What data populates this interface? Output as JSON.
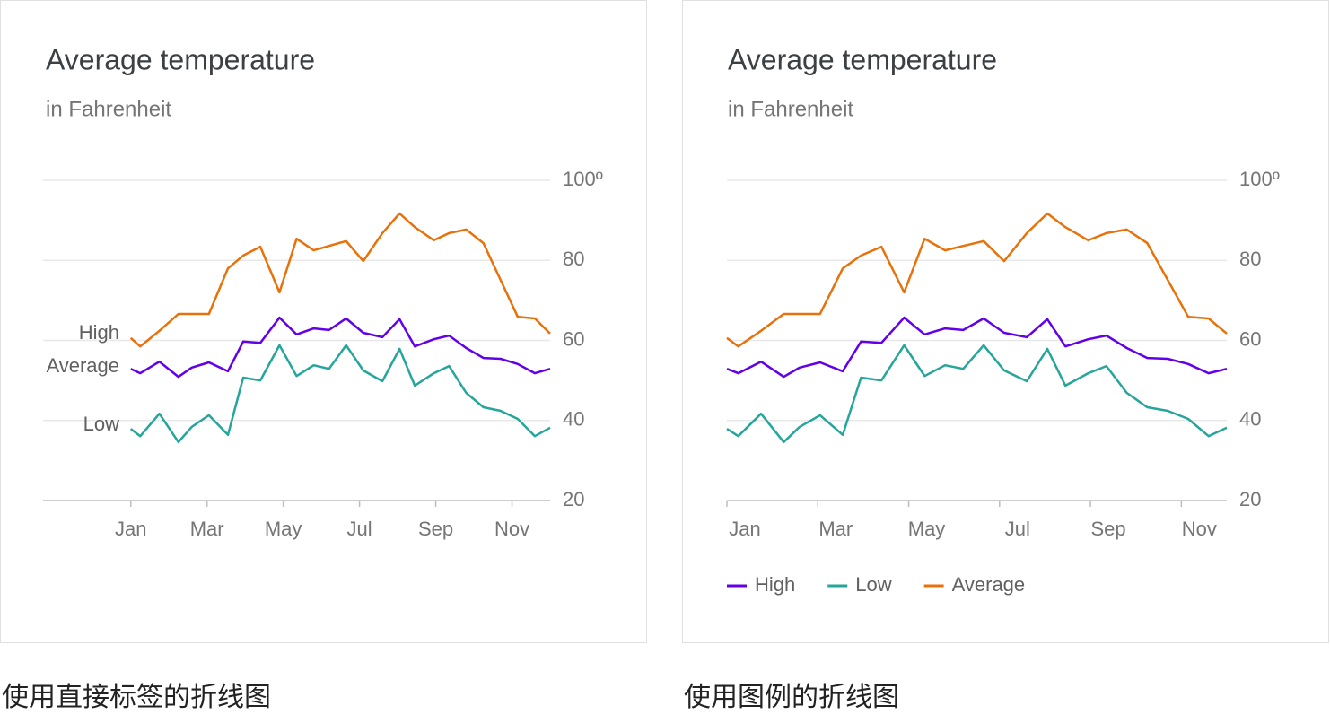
{
  "chart_data": [
    {
      "type": "line",
      "title": "Average temperature",
      "subtitle": "in Fahrenheit",
      "caption": "使用直接标签的折线图",
      "legend": "direct",
      "grid": true,
      "x": [
        1,
        1.25,
        1.75,
        2.25,
        2.6,
        3.05,
        3.55,
        3.95,
        4.4,
        4.9,
        5.35,
        5.8,
        6.2,
        6.65,
        7.1,
        7.6,
        8.05,
        8.45,
        8.95,
        9.35,
        9.8,
        10.25,
        10.7,
        11.15,
        11.6,
        12
      ],
      "series": [
        {
          "name": "High",
          "color": "#6200ea",
          "values": [
            52.9,
            51.8,
            54.7,
            50.9,
            53.2,
            54.5,
            52.3,
            59.7,
            59.4,
            65.7,
            61.5,
            63.0,
            62.6,
            65.5,
            61.9,
            60.8,
            65.3,
            58.5,
            60.3,
            61.2,
            58.1,
            55.6,
            55.4,
            54.1,
            51.8,
            52.9
          ]
        },
        {
          "name": "Low",
          "color": "#26a69a",
          "values": [
            37.9,
            36.1,
            41.7,
            34.6,
            38.4,
            41.3,
            36.4,
            50.7,
            50.0,
            58.8,
            51.1,
            53.8,
            52.9,
            58.8,
            52.5,
            49.8,
            57.9,
            48.7,
            51.8,
            53.6,
            46.9,
            43.3,
            42.4,
            40.4,
            36.1,
            38.2
          ]
        },
        {
          "name": "Average",
          "color": "#e8710a",
          "values": [
            60.6,
            58.5,
            62.4,
            66.6,
            66.6,
            66.6,
            78.0,
            81.2,
            83.4,
            72.0,
            85.4,
            82.5,
            83.6,
            84.8,
            79.8,
            86.8,
            91.7,
            88.3,
            85.0,
            86.8,
            87.7,
            84.3,
            75.1,
            65.9,
            65.5,
            61.7
          ]
        }
      ],
      "xlim": [
        -1.3,
        12
      ],
      "xticks": [
        {
          "value": 1,
          "label": "Jan"
        },
        {
          "value": 3,
          "label": "Mar"
        },
        {
          "value": 5,
          "label": "May"
        },
        {
          "value": 7,
          "label": "Jul"
        },
        {
          "value": 9,
          "label": "Sep"
        },
        {
          "value": 11,
          "label": "Nov"
        }
      ],
      "ylim": [
        20,
        100
      ],
      "yticks": [
        20,
        40,
        60,
        80,
        {
          "value": 100,
          "label": "100º"
        }
      ]
    },
    {
      "type": "line",
      "title": "Average temperature",
      "subtitle": "in Fahrenheit",
      "caption": "使用图例的折线图",
      "legend": "bottom-left",
      "grid": true,
      "x": [
        1,
        1.25,
        1.75,
        2.25,
        2.6,
        3.05,
        3.55,
        3.95,
        4.4,
        4.9,
        5.35,
        5.8,
        6.2,
        6.65,
        7.1,
        7.6,
        8.05,
        8.45,
        8.95,
        9.35,
        9.8,
        10.25,
        10.7,
        11.15,
        11.6,
        12
      ],
      "series": [
        {
          "name": "High",
          "color": "#6200ea",
          "values": [
            52.9,
            51.8,
            54.7,
            50.9,
            53.2,
            54.5,
            52.3,
            59.7,
            59.4,
            65.7,
            61.5,
            63.0,
            62.6,
            65.5,
            61.9,
            60.8,
            65.3,
            58.5,
            60.3,
            61.2,
            58.1,
            55.6,
            55.4,
            54.1,
            51.8,
            52.9
          ]
        },
        {
          "name": "Low",
          "color": "#26a69a",
          "values": [
            37.9,
            36.1,
            41.7,
            34.6,
            38.4,
            41.3,
            36.4,
            50.7,
            50.0,
            58.8,
            51.1,
            53.8,
            52.9,
            58.8,
            52.5,
            49.8,
            57.9,
            48.7,
            51.8,
            53.6,
            46.9,
            43.3,
            42.4,
            40.4,
            36.1,
            38.2
          ]
        },
        {
          "name": "Average",
          "color": "#e8710a",
          "values": [
            60.6,
            58.5,
            62.4,
            66.6,
            66.6,
            66.6,
            78.0,
            81.2,
            83.4,
            72.0,
            85.4,
            82.5,
            83.6,
            84.8,
            79.8,
            86.8,
            91.7,
            88.3,
            85.0,
            86.8,
            87.7,
            84.3,
            75.1,
            65.9,
            65.5,
            61.7
          ]
        }
      ],
      "xlim": [
        1,
        12
      ],
      "xticks": [
        {
          "value": 1,
          "label": "Jan"
        },
        {
          "value": 3,
          "label": "Mar"
        },
        {
          "value": 5,
          "label": "May"
        },
        {
          "value": 7,
          "label": "Jul"
        },
        {
          "value": 9,
          "label": "Sep"
        },
        {
          "value": 11,
          "label": "Nov"
        }
      ],
      "ylim": [
        20,
        100
      ],
      "yticks": [
        20,
        40,
        60,
        80,
        {
          "value": 100,
          "label": "100º"
        }
      ]
    }
  ]
}
